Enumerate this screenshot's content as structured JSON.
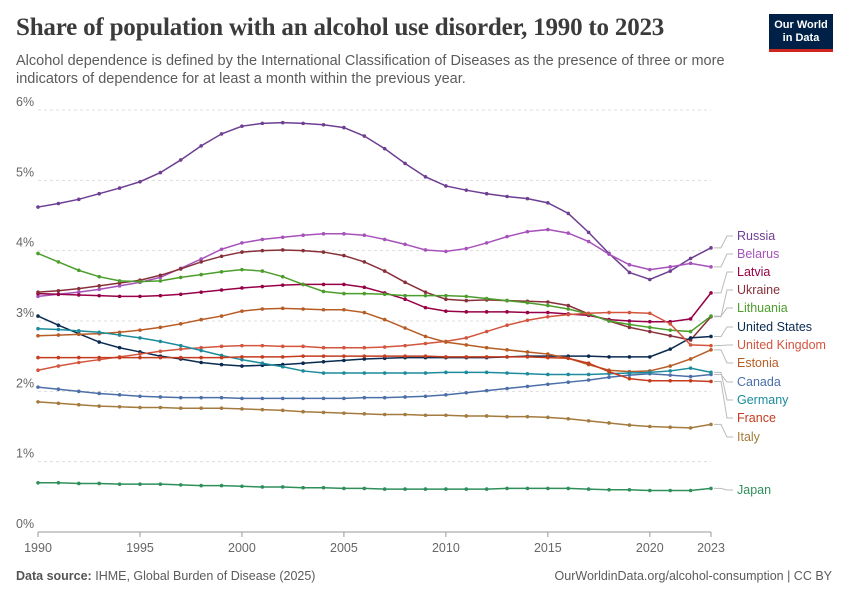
{
  "header": {
    "title": "Share of population with an alcohol use disorder, 1990 to 2023",
    "subtitle": "Alcohol dependence is defined by the International Classification of Diseases as the presence of three or more indicators of dependence for at least a month within the previous year."
  },
  "logo": {
    "line1": "Our World",
    "line2": "in Data"
  },
  "footer": {
    "source_label": "Data source:",
    "source_text": "IHME, Global Burden of Disease (2025)",
    "credit": "OurWorldinData.org/alcohol-consumption | CC BY"
  },
  "chart_data": {
    "type": "line",
    "title": "Share of population with an alcohol use disorder, 1990 to 2023",
    "ylim": [
      0,
      6
    ],
    "xlim": [
      1990,
      2023
    ],
    "y_ticks": [
      0,
      1,
      2,
      3,
      4,
      5,
      6
    ],
    "y_tick_labels": [
      "0%",
      "1%",
      "2%",
      "3%",
      "4%",
      "5%",
      "6%"
    ],
    "x_ticks": [
      1990,
      1995,
      2000,
      2005,
      2010,
      2015,
      2020,
      2023
    ],
    "x_tick_labels": [
      "1990",
      "1995",
      "2000",
      "2005",
      "2010",
      "2015",
      "2020",
      "2023"
    ],
    "grid": "horizontal-dashed",
    "legend": "right, inline labels at line ends",
    "series": [
      {
        "name": "Russia",
        "color": "#6D3E91",
        "values": [
          4.62,
          4.67,
          4.73,
          4.81,
          4.89,
          4.98,
          5.11,
          5.29,
          5.49,
          5.66,
          5.77,
          5.81,
          5.82,
          5.81,
          5.79,
          5.75,
          5.63,
          5.45,
          5.24,
          5.05,
          4.92,
          4.86,
          4.81,
          4.77,
          4.74,
          4.68,
          4.53,
          4.26,
          3.96,
          3.69,
          3.59,
          3.71,
          3.89,
          4.04
        ]
      },
      {
        "name": "Belarus",
        "color": "#A652BA",
        "values": [
          3.35,
          3.38,
          3.41,
          3.45,
          3.5,
          3.55,
          3.62,
          3.75,
          3.88,
          4.02,
          4.11,
          4.16,
          4.19,
          4.22,
          4.24,
          4.24,
          4.22,
          4.16,
          4.09,
          4.01,
          3.99,
          4.03,
          4.11,
          4.2,
          4.27,
          4.3,
          4.25,
          4.13,
          3.95,
          3.8,
          3.73,
          3.77,
          3.82,
          3.77
        ]
      },
      {
        "name": "Latvia",
        "color": "#970046",
        "values": [
          3.39,
          3.38,
          3.37,
          3.36,
          3.35,
          3.35,
          3.36,
          3.38,
          3.41,
          3.44,
          3.47,
          3.49,
          3.51,
          3.52,
          3.52,
          3.52,
          3.48,
          3.4,
          3.31,
          3.19,
          3.14,
          3.13,
          3.13,
          3.13,
          3.12,
          3.12,
          3.1,
          3.08,
          3.02,
          3.0,
          2.99,
          2.99,
          3.03,
          3.4
        ]
      },
      {
        "name": "Ukraine",
        "color": "#883039",
        "values": [
          3.41,
          3.43,
          3.46,
          3.5,
          3.54,
          3.58,
          3.65,
          3.74,
          3.84,
          3.92,
          3.98,
          4.0,
          4.01,
          4.0,
          3.98,
          3.93,
          3.84,
          3.71,
          3.55,
          3.41,
          3.31,
          3.29,
          3.3,
          3.29,
          3.28,
          3.27,
          3.22,
          3.1,
          3.0,
          2.91,
          2.85,
          2.79,
          2.73,
          3.06
        ]
      },
      {
        "name": "Lithuania",
        "color": "#4C9E2C",
        "values": [
          3.96,
          3.84,
          3.72,
          3.63,
          3.57,
          3.56,
          3.57,
          3.62,
          3.66,
          3.7,
          3.73,
          3.71,
          3.63,
          3.52,
          3.42,
          3.39,
          3.39,
          3.38,
          3.36,
          3.36,
          3.36,
          3.35,
          3.32,
          3.29,
          3.26,
          3.22,
          3.17,
          3.1,
          3.0,
          2.95,
          2.91,
          2.87,
          2.85,
          3.07
        ]
      },
      {
        "name": "United States",
        "color": "#0A2A50",
        "values": [
          3.07,
          2.94,
          2.82,
          2.7,
          2.62,
          2.56,
          2.5,
          2.46,
          2.41,
          2.38,
          2.36,
          2.37,
          2.38,
          2.4,
          2.42,
          2.44,
          2.46,
          2.47,
          2.48,
          2.48,
          2.48,
          2.48,
          2.48,
          2.49,
          2.5,
          2.5,
          2.5,
          2.5,
          2.49,
          2.49,
          2.49,
          2.6,
          2.76,
          2.78
        ]
      },
      {
        "name": "United Kingdom",
        "color": "#D3553E",
        "values": [
          2.3,
          2.36,
          2.41,
          2.45,
          2.49,
          2.53,
          2.57,
          2.6,
          2.62,
          2.64,
          2.65,
          2.65,
          2.64,
          2.64,
          2.62,
          2.62,
          2.62,
          2.63,
          2.65,
          2.68,
          2.71,
          2.76,
          2.85,
          2.94,
          3.01,
          3.06,
          3.09,
          3.11,
          3.12,
          3.12,
          3.11,
          2.96,
          2.66,
          2.65
        ]
      },
      {
        "name": "Estonia",
        "color": "#B75C24",
        "values": [
          2.79,
          2.8,
          2.81,
          2.82,
          2.84,
          2.87,
          2.91,
          2.96,
          3.02,
          3.07,
          3.14,
          3.17,
          3.18,
          3.17,
          3.16,
          3.16,
          3.12,
          3.02,
          2.9,
          2.78,
          2.7,
          2.66,
          2.62,
          2.59,
          2.56,
          2.53,
          2.47,
          2.38,
          2.3,
          2.28,
          2.29,
          2.36,
          2.46,
          2.59
        ]
      },
      {
        "name": "Canada",
        "color": "#4C6FA8",
        "values": [
          2.06,
          2.03,
          2.0,
          1.97,
          1.95,
          1.93,
          1.92,
          1.91,
          1.91,
          1.91,
          1.9,
          1.9,
          1.9,
          1.9,
          1.9,
          1.9,
          1.91,
          1.91,
          1.92,
          1.93,
          1.95,
          1.98,
          2.01,
          2.04,
          2.07,
          2.1,
          2.13,
          2.16,
          2.2,
          2.23,
          2.25,
          2.23,
          2.21,
          2.24
        ]
      },
      {
        "name": "Germany",
        "color": "#1C8C9C",
        "values": [
          2.89,
          2.88,
          2.86,
          2.84,
          2.8,
          2.76,
          2.71,
          2.65,
          2.58,
          2.51,
          2.45,
          2.4,
          2.35,
          2.29,
          2.26,
          2.26,
          2.26,
          2.26,
          2.26,
          2.26,
          2.27,
          2.27,
          2.27,
          2.26,
          2.25,
          2.24,
          2.24,
          2.24,
          2.25,
          2.26,
          2.27,
          2.29,
          2.33,
          2.27
        ]
      },
      {
        "name": "France",
        "color": "#C43B1E",
        "values": [
          2.48,
          2.48,
          2.48,
          2.48,
          2.48,
          2.48,
          2.48,
          2.48,
          2.48,
          2.48,
          2.49,
          2.49,
          2.49,
          2.5,
          2.5,
          2.5,
          2.5,
          2.5,
          2.5,
          2.5,
          2.49,
          2.49,
          2.49,
          2.49,
          2.49,
          2.48,
          2.47,
          2.4,
          2.28,
          2.18,
          2.15,
          2.15,
          2.15,
          2.14
        ]
      },
      {
        "name": "Italy",
        "color": "#A47B3E",
        "values": [
          1.85,
          1.83,
          1.81,
          1.79,
          1.78,
          1.77,
          1.77,
          1.76,
          1.76,
          1.76,
          1.75,
          1.74,
          1.73,
          1.71,
          1.7,
          1.69,
          1.68,
          1.67,
          1.67,
          1.66,
          1.66,
          1.65,
          1.65,
          1.64,
          1.64,
          1.63,
          1.61,
          1.58,
          1.55,
          1.52,
          1.5,
          1.49,
          1.48,
          1.53
        ]
      },
      {
        "name": "Japan",
        "color": "#2E8F5B",
        "values": [
          0.7,
          0.7,
          0.69,
          0.69,
          0.68,
          0.68,
          0.68,
          0.67,
          0.66,
          0.66,
          0.65,
          0.64,
          0.64,
          0.63,
          0.63,
          0.62,
          0.62,
          0.61,
          0.61,
          0.61,
          0.61,
          0.61,
          0.61,
          0.62,
          0.62,
          0.62,
          0.62,
          0.61,
          0.6,
          0.6,
          0.59,
          0.59,
          0.59,
          0.62
        ]
      }
    ],
    "label_positions_order": [
      "Russia",
      "Belarus",
      "Latvia",
      "Ukraine",
      "Lithuania",
      "United States",
      "United Kingdom",
      "Estonia",
      "Canada",
      "Germany",
      "France",
      "Italy",
      "Japan"
    ]
  }
}
